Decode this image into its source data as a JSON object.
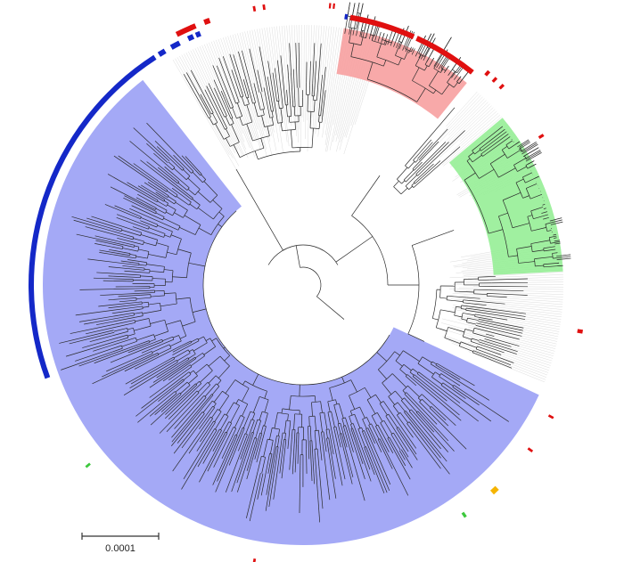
{
  "figure": {
    "type": "circular-phylogenetic-tree",
    "scale_bar": {
      "label": "0.0001"
    },
    "clades": [
      {
        "name": "blue-clade",
        "color": "#9aa0f5",
        "ring_color": "#1428c8",
        "extent": "large"
      },
      {
        "name": "red-clade",
        "color": "#f7a0a0",
        "ring_color": "#e01010",
        "extent": "small"
      },
      {
        "name": "green-clade",
        "color": "#96ee96",
        "ring_color": "#2ec82e",
        "extent": "small"
      }
    ],
    "marker_colors": {
      "red": "#e01010",
      "blue": "#1428c8",
      "green": "#3cc83c",
      "orange": "#f5b400"
    }
  }
}
